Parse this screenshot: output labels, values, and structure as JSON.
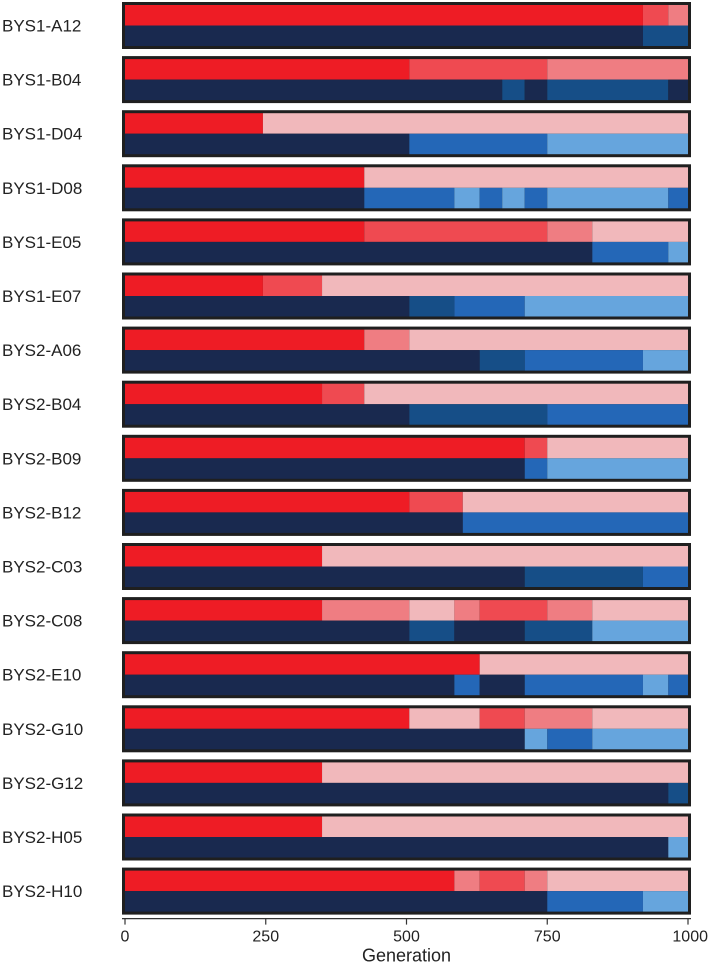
{
  "chart_data": {
    "type": "bar",
    "subtype": "stacked-horizontal-segment-timeline",
    "xlabel": "Generation",
    "xlim": [
      0,
      1000
    ],
    "xticks": [
      0,
      250,
      500,
      750,
      1000
    ],
    "grid": false,
    "legend": "none",
    "colors": {
      "frame": "#1f1f1f",
      "divider": "#ffffff",
      "red_1": "#ee1c25",
      "red_2": "#ef4a51",
      "red_3": "#ef7d82",
      "red_4": "#f1b8bb",
      "blue_1": "#19294f",
      "blue_2": "#164e87",
      "blue_3": "#2467b7",
      "blue_4": "#66a5dd"
    },
    "rows": [
      {
        "label": "BYS1-A12",
        "red_segments": [
          {
            "start": 0,
            "end": 920,
            "shade": "red_1"
          },
          {
            "start": 920,
            "end": 965,
            "shade": "red_2"
          },
          {
            "start": 965,
            "end": 1000,
            "shade": "red_3"
          }
        ],
        "blue_segments": [
          {
            "start": 0,
            "end": 920,
            "shade": "blue_1"
          },
          {
            "start": 920,
            "end": 1000,
            "shade": "blue_2"
          }
        ]
      },
      {
        "label": "BYS1-B04",
        "red_segments": [
          {
            "start": 0,
            "end": 505,
            "shade": "red_1"
          },
          {
            "start": 505,
            "end": 750,
            "shade": "red_2"
          },
          {
            "start": 750,
            "end": 1000,
            "shade": "red_3"
          }
        ],
        "blue_segments": [
          {
            "start": 0,
            "end": 670,
            "shade": "blue_1"
          },
          {
            "start": 670,
            "end": 710,
            "shade": "blue_2"
          },
          {
            "start": 710,
            "end": 750,
            "shade": "blue_1"
          },
          {
            "start": 750,
            "end": 965,
            "shade": "blue_2"
          },
          {
            "start": 965,
            "end": 1000,
            "shade": "blue_1"
          }
        ]
      },
      {
        "label": "BYS1-D04",
        "red_segments": [
          {
            "start": 0,
            "end": 245,
            "shade": "red_1"
          },
          {
            "start": 245,
            "end": 1000,
            "shade": "red_4"
          }
        ],
        "blue_segments": [
          {
            "start": 0,
            "end": 505,
            "shade": "blue_1"
          },
          {
            "start": 505,
            "end": 750,
            "shade": "blue_3"
          },
          {
            "start": 750,
            "end": 1000,
            "shade": "blue_4"
          }
        ]
      },
      {
        "label": "BYS1-D08",
        "red_segments": [
          {
            "start": 0,
            "end": 425,
            "shade": "red_1"
          },
          {
            "start": 425,
            "end": 1000,
            "shade": "red_4"
          }
        ],
        "blue_segments": [
          {
            "start": 0,
            "end": 425,
            "shade": "blue_1"
          },
          {
            "start": 425,
            "end": 585,
            "shade": "blue_3"
          },
          {
            "start": 585,
            "end": 630,
            "shade": "blue_4"
          },
          {
            "start": 630,
            "end": 670,
            "shade": "blue_3"
          },
          {
            "start": 670,
            "end": 710,
            "shade": "blue_4"
          },
          {
            "start": 710,
            "end": 750,
            "shade": "blue_3"
          },
          {
            "start": 750,
            "end": 965,
            "shade": "blue_4"
          },
          {
            "start": 965,
            "end": 1000,
            "shade": "blue_3"
          }
        ]
      },
      {
        "label": "BYS1-E05",
        "red_segments": [
          {
            "start": 0,
            "end": 425,
            "shade": "red_1"
          },
          {
            "start": 425,
            "end": 750,
            "shade": "red_2"
          },
          {
            "start": 750,
            "end": 830,
            "shade": "red_3"
          },
          {
            "start": 830,
            "end": 1000,
            "shade": "red_4"
          }
        ],
        "blue_segments": [
          {
            "start": 0,
            "end": 830,
            "shade": "blue_1"
          },
          {
            "start": 830,
            "end": 965,
            "shade": "blue_3"
          },
          {
            "start": 965,
            "end": 1000,
            "shade": "blue_4"
          }
        ]
      },
      {
        "label": "BYS1-E07",
        "red_segments": [
          {
            "start": 0,
            "end": 245,
            "shade": "red_1"
          },
          {
            "start": 245,
            "end": 350,
            "shade": "red_2"
          },
          {
            "start": 350,
            "end": 1000,
            "shade": "red_4"
          }
        ],
        "blue_segments": [
          {
            "start": 0,
            "end": 505,
            "shade": "blue_1"
          },
          {
            "start": 505,
            "end": 585,
            "shade": "blue_2"
          },
          {
            "start": 585,
            "end": 710,
            "shade": "blue_3"
          },
          {
            "start": 710,
            "end": 1000,
            "shade": "blue_4"
          }
        ]
      },
      {
        "label": "BYS2-A06",
        "red_segments": [
          {
            "start": 0,
            "end": 425,
            "shade": "red_1"
          },
          {
            "start": 425,
            "end": 505,
            "shade": "red_3"
          },
          {
            "start": 505,
            "end": 1000,
            "shade": "red_4"
          }
        ],
        "blue_segments": [
          {
            "start": 0,
            "end": 630,
            "shade": "blue_1"
          },
          {
            "start": 630,
            "end": 710,
            "shade": "blue_2"
          },
          {
            "start": 710,
            "end": 920,
            "shade": "blue_3"
          },
          {
            "start": 920,
            "end": 1000,
            "shade": "blue_4"
          }
        ]
      },
      {
        "label": "BYS2-B04",
        "red_segments": [
          {
            "start": 0,
            "end": 350,
            "shade": "red_1"
          },
          {
            "start": 350,
            "end": 425,
            "shade": "red_2"
          },
          {
            "start": 425,
            "end": 1000,
            "shade": "red_4"
          }
        ],
        "blue_segments": [
          {
            "start": 0,
            "end": 505,
            "shade": "blue_1"
          },
          {
            "start": 505,
            "end": 750,
            "shade": "blue_2"
          },
          {
            "start": 750,
            "end": 1000,
            "shade": "blue_3"
          }
        ]
      },
      {
        "label": "BYS2-B09",
        "red_segments": [
          {
            "start": 0,
            "end": 710,
            "shade": "red_1"
          },
          {
            "start": 710,
            "end": 750,
            "shade": "red_2"
          },
          {
            "start": 750,
            "end": 1000,
            "shade": "red_4"
          }
        ],
        "blue_segments": [
          {
            "start": 0,
            "end": 710,
            "shade": "blue_1"
          },
          {
            "start": 710,
            "end": 750,
            "shade": "blue_3"
          },
          {
            "start": 750,
            "end": 1000,
            "shade": "blue_4"
          }
        ]
      },
      {
        "label": "BYS2-B12",
        "red_segments": [
          {
            "start": 0,
            "end": 505,
            "shade": "red_1"
          },
          {
            "start": 505,
            "end": 600,
            "shade": "red_2"
          },
          {
            "start": 600,
            "end": 1000,
            "shade": "red_4"
          }
        ],
        "blue_segments": [
          {
            "start": 0,
            "end": 600,
            "shade": "blue_1"
          },
          {
            "start": 600,
            "end": 1000,
            "shade": "blue_3"
          }
        ]
      },
      {
        "label": "BYS2-C03",
        "red_segments": [
          {
            "start": 0,
            "end": 350,
            "shade": "red_1"
          },
          {
            "start": 350,
            "end": 1000,
            "shade": "red_4"
          }
        ],
        "blue_segments": [
          {
            "start": 0,
            "end": 710,
            "shade": "blue_1"
          },
          {
            "start": 710,
            "end": 920,
            "shade": "blue_2"
          },
          {
            "start": 920,
            "end": 1000,
            "shade": "blue_3"
          }
        ]
      },
      {
        "label": "BYS2-C08",
        "red_segments": [
          {
            "start": 0,
            "end": 350,
            "shade": "red_1"
          },
          {
            "start": 350,
            "end": 505,
            "shade": "red_3"
          },
          {
            "start": 505,
            "end": 585,
            "shade": "red_4"
          },
          {
            "start": 585,
            "end": 630,
            "shade": "red_3"
          },
          {
            "start": 630,
            "end": 750,
            "shade": "red_2"
          },
          {
            "start": 750,
            "end": 830,
            "shade": "red_3"
          },
          {
            "start": 830,
            "end": 1000,
            "shade": "red_4"
          }
        ],
        "blue_segments": [
          {
            "start": 0,
            "end": 505,
            "shade": "blue_1"
          },
          {
            "start": 505,
            "end": 585,
            "shade": "blue_2"
          },
          {
            "start": 585,
            "end": 710,
            "shade": "blue_1"
          },
          {
            "start": 710,
            "end": 830,
            "shade": "blue_2"
          },
          {
            "start": 830,
            "end": 1000,
            "shade": "blue_4"
          }
        ]
      },
      {
        "label": "BYS2-E10",
        "red_segments": [
          {
            "start": 0,
            "end": 630,
            "shade": "red_1"
          },
          {
            "start": 630,
            "end": 1000,
            "shade": "red_4"
          }
        ],
        "blue_segments": [
          {
            "start": 0,
            "end": 585,
            "shade": "blue_1"
          },
          {
            "start": 585,
            "end": 630,
            "shade": "blue_3"
          },
          {
            "start": 630,
            "end": 710,
            "shade": "blue_1"
          },
          {
            "start": 710,
            "end": 920,
            "shade": "blue_3"
          },
          {
            "start": 920,
            "end": 965,
            "shade": "blue_4"
          },
          {
            "start": 965,
            "end": 1000,
            "shade": "blue_3"
          }
        ]
      },
      {
        "label": "BYS2-G10",
        "red_segments": [
          {
            "start": 0,
            "end": 505,
            "shade": "red_1"
          },
          {
            "start": 505,
            "end": 630,
            "shade": "red_4"
          },
          {
            "start": 630,
            "end": 710,
            "shade": "red_2"
          },
          {
            "start": 710,
            "end": 830,
            "shade": "red_3"
          },
          {
            "start": 830,
            "end": 1000,
            "shade": "red_4"
          }
        ],
        "blue_segments": [
          {
            "start": 0,
            "end": 710,
            "shade": "blue_1"
          },
          {
            "start": 710,
            "end": 750,
            "shade": "blue_4"
          },
          {
            "start": 750,
            "end": 830,
            "shade": "blue_3"
          },
          {
            "start": 830,
            "end": 1000,
            "shade": "blue_4"
          }
        ]
      },
      {
        "label": "BYS2-G12",
        "red_segments": [
          {
            "start": 0,
            "end": 350,
            "shade": "red_1"
          },
          {
            "start": 350,
            "end": 1000,
            "shade": "red_4"
          }
        ],
        "blue_segments": [
          {
            "start": 0,
            "end": 965,
            "shade": "blue_1"
          },
          {
            "start": 965,
            "end": 1000,
            "shade": "blue_2"
          }
        ]
      },
      {
        "label": "BYS2-H05",
        "red_segments": [
          {
            "start": 0,
            "end": 350,
            "shade": "red_1"
          },
          {
            "start": 350,
            "end": 1000,
            "shade": "red_4"
          }
        ],
        "blue_segments": [
          {
            "start": 0,
            "end": 965,
            "shade": "blue_1"
          },
          {
            "start": 965,
            "end": 1000,
            "shade": "blue_4"
          }
        ]
      },
      {
        "label": "BYS2-H10",
        "red_segments": [
          {
            "start": 0,
            "end": 585,
            "shade": "red_1"
          },
          {
            "start": 585,
            "end": 630,
            "shade": "red_3"
          },
          {
            "start": 630,
            "end": 710,
            "shade": "red_2"
          },
          {
            "start": 710,
            "end": 750,
            "shade": "red_3"
          },
          {
            "start": 750,
            "end": 1000,
            "shade": "red_4"
          }
        ],
        "blue_segments": [
          {
            "start": 0,
            "end": 750,
            "shade": "blue_1"
          },
          {
            "start": 750,
            "end": 920,
            "shade": "blue_3"
          },
          {
            "start": 920,
            "end": 1000,
            "shade": "blue_4"
          }
        ]
      }
    ]
  }
}
